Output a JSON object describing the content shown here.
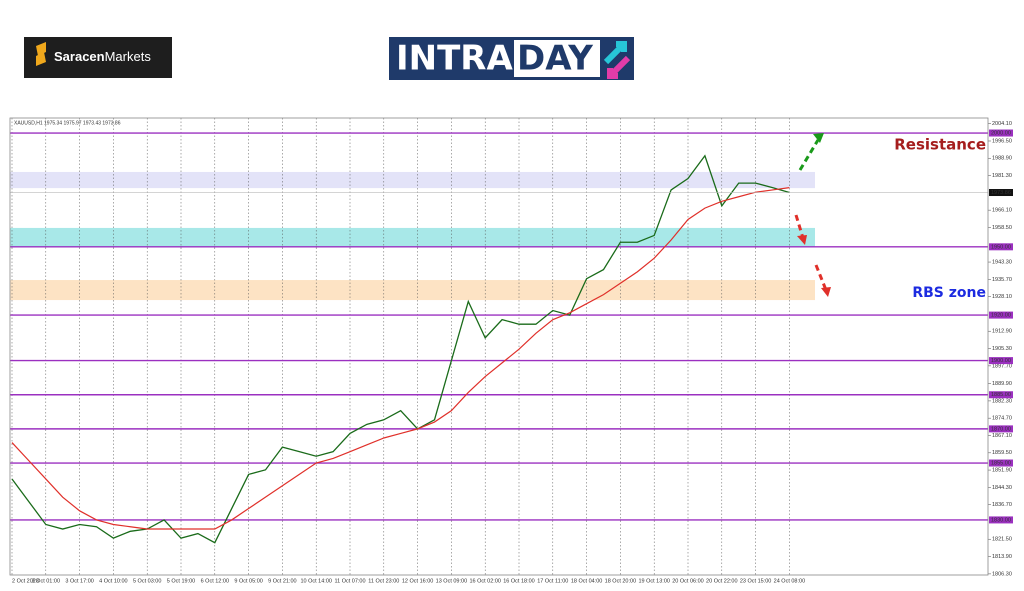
{
  "logo_left": [
    "Saracen",
    "Markets"
  ],
  "logo_right": [
    "INTRA",
    "DAY"
  ],
  "chart_data": {
    "type": "line",
    "header": "XAUUSD,H1  1975.34 1975.97 1973.43 1973.86",
    "categories": [
      "2 Oct 2023",
      null,
      "3 Oct 01:00",
      null,
      "3 Oct 17:00",
      null,
      "4 Oct 10:00",
      null,
      "5 Oct 03:00",
      null,
      "5 Oct 19:00",
      null,
      "6 Oct 12:00",
      null,
      "9 Oct 05:00",
      null,
      "9 Oct 21:00",
      null,
      "10 Oct 14:00",
      null,
      "11 Oct 07:00",
      null,
      "11 Oct 23:00",
      null,
      "12 Oct 16:00",
      null,
      "13 Oct 09:00",
      null,
      "16 Oct 02:00",
      null,
      "16 Oct 18:00",
      null,
      "17 Oct 11:00",
      null,
      "18 Oct 04:00",
      null,
      "18 Oct 20:00",
      null,
      "19 Oct 13:00",
      null,
      "20 Oct 06:00",
      null,
      "20 Oct 22:00",
      null,
      "23 Oct 15:00",
      null,
      "24 Oct 08:00"
    ],
    "series": [
      {
        "color": "#1a6b1a",
        "values": [
          1848,
          1838,
          1828,
          1826,
          1828,
          1827,
          1822,
          1825,
          1826,
          1830,
          1822,
          1824,
          1820,
          1835,
          1850,
          1852,
          1862,
          1860,
          1858,
          1860,
          1868,
          1872,
          1874,
          1878,
          1870,
          1874,
          1900,
          1926,
          1910,
          1918,
          1916,
          1916,
          1922,
          1920,
          1936,
          1940,
          1952,
          1952,
          1955,
          1975,
          1980,
          1990,
          1968,
          1978,
          1978,
          1976,
          1973.86
        ]
      },
      {
        "color": "#e0302a",
        "values": [
          1864,
          1856,
          1848,
          1840,
          1834,
          1830,
          1828,
          1827,
          1826,
          1826,
          1826,
          1826,
          1826,
          1830,
          1835,
          1840,
          1845,
          1850,
          1855,
          1857,
          1860,
          1863,
          1866,
          1868,
          1870,
          1873,
          1878,
          1886,
          1893,
          1899,
          1905,
          1912,
          1918,
          1921,
          1925,
          1929,
          1934,
          1939,
          1945,
          1953,
          1962,
          1967,
          1970,
          1972,
          1974,
          1975,
          1976
        ]
      }
    ],
    "ylim": [
      1805.8,
      2006.6
    ],
    "yticks": [
      {
        "value": 2004.1,
        "label": "2004.10"
      },
      {
        "value": 1996.5,
        "label": "1996.50"
      },
      {
        "value": 1988.9,
        "label": "1988.90"
      },
      {
        "value": 1981.3,
        "label": "1981.30"
      },
      {
        "value": 1966.1,
        "label": "1966.10"
      },
      {
        "value": 1958.5,
        "label": "1958.50"
      },
      {
        "value": 1943.3,
        "label": "1943.30"
      },
      {
        "value": 1935.7,
        "label": "1935.70"
      },
      {
        "value": 1928.1,
        "label": "1928.10"
      },
      {
        "value": 1912.9,
        "label": "1912.90"
      },
      {
        "value": 1905.3,
        "label": "1905.30"
      },
      {
        "value": 1897.7,
        "label": "1897.70"
      },
      {
        "value": 1889.9,
        "label": "1889.90"
      },
      {
        "value": 1882.3,
        "label": "1882.30"
      },
      {
        "value": 1874.7,
        "label": "1874.70"
      },
      {
        "value": 1867.1,
        "label": "1867.10"
      },
      {
        "value": 1859.5,
        "label": "1859.50"
      },
      {
        "value": 1851.9,
        "label": "1851.90"
      },
      {
        "value": 1844.3,
        "label": "1844.30"
      },
      {
        "value": 1836.7,
        "label": "1836.70"
      },
      {
        "value": 1821.5,
        "label": "1821.50"
      },
      {
        "value": 1813.9,
        "label": "1813.90"
      },
      {
        "value": 1806.3,
        "label": "1806.30"
      }
    ],
    "levels": [
      {
        "value": 2000,
        "label": "2000.00"
      },
      {
        "value": 1950,
        "label": "1950.00"
      },
      {
        "value": 1920,
        "label": "1920.00"
      },
      {
        "value": 1900,
        "label": "1900.00"
      },
      {
        "value": 1885,
        "label": "1885.00"
      },
      {
        "value": 1870,
        "label": "1870.00"
      },
      {
        "value": 1855,
        "label": "1855.00"
      },
      {
        "value": 1830,
        "label": "1830.00"
      }
    ],
    "level_color": "#9b30c0",
    "last_price": 1973.86,
    "zones": [
      {
        "from": 1975.8,
        "to": 1982.9,
        "color": "#e3e3f8"
      },
      {
        "from": 1950,
        "to": 1958.3,
        "color": "#a8e8e8"
      },
      {
        "from": 1926.6,
        "to": 1935.4,
        "color": "#fde3c4"
      }
    ],
    "annotations": [
      "Resistance",
      "RBS zone"
    ]
  }
}
